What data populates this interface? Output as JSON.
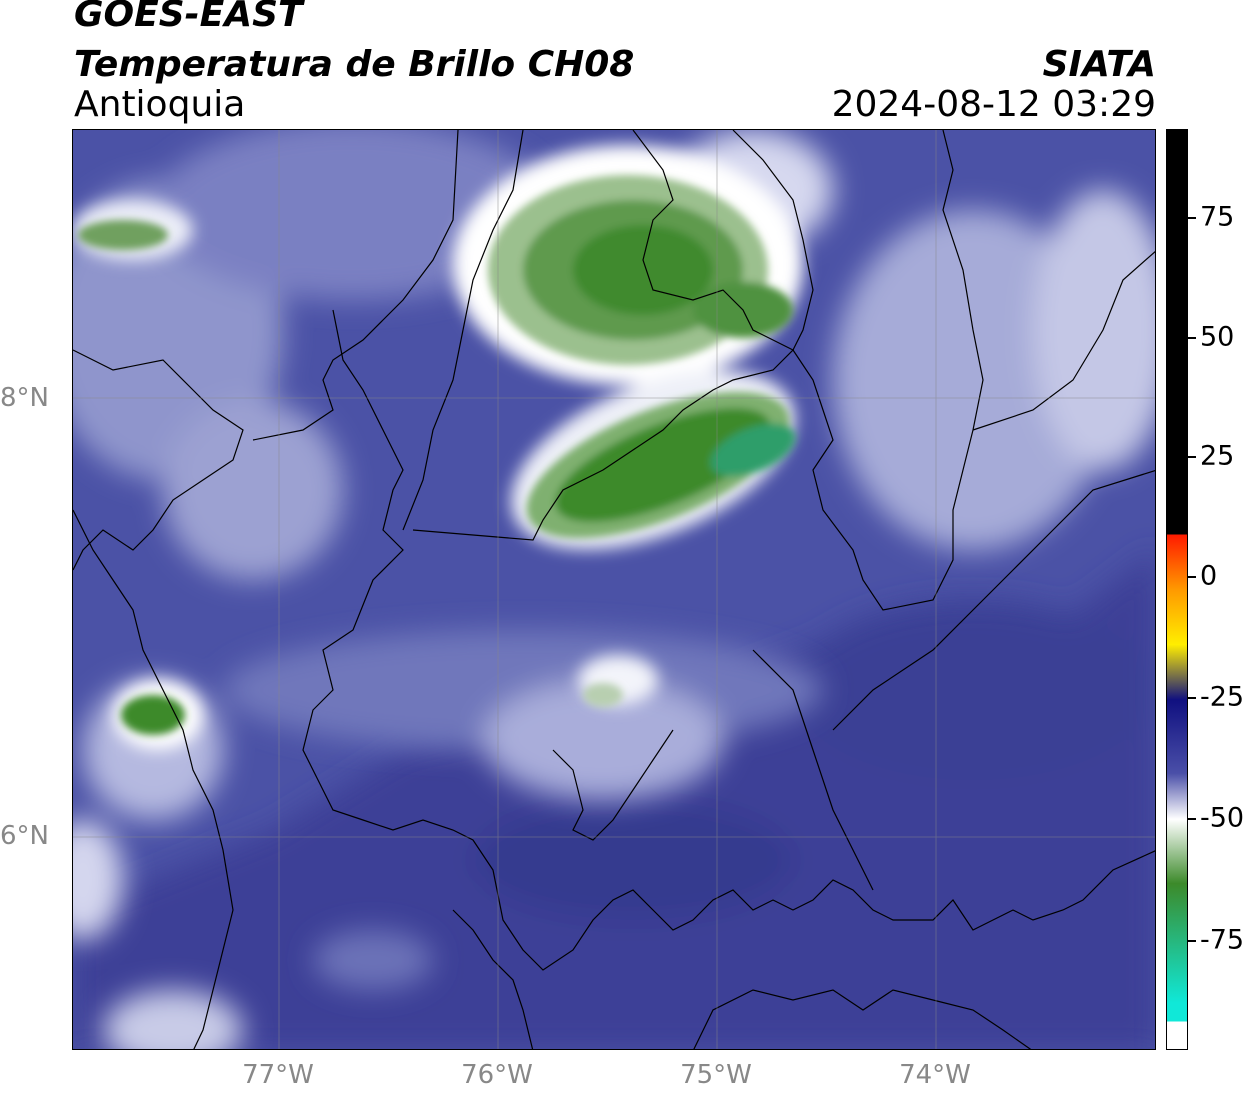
{
  "header": {
    "satellite": "GOES-EAST",
    "product": "Temperatura de Brillo CH08",
    "region": "Antioquia",
    "organization": "SIATA",
    "datetime": "2024-08-12 03:29"
  },
  "map": {
    "lat_labels": [
      "8°N",
      "6°N"
    ],
    "lon_labels": [
      "77°W",
      "76°W",
      "75°W",
      "74°W"
    ]
  },
  "colorbar": {
    "tick_labels": [
      "75",
      "50",
      "25",
      "0",
      "-25",
      "-50",
      "-75"
    ],
    "colors": {
      "black": "#000000",
      "red": "#ff1a00",
      "orange": "#ff9900",
      "yellow": "#ffee00",
      "navy": "#101080",
      "purple_blue": "#4a4fa8",
      "white": "#ffffff",
      "green": "#3c8a2a",
      "cyan": "#10e8d8"
    }
  }
}
